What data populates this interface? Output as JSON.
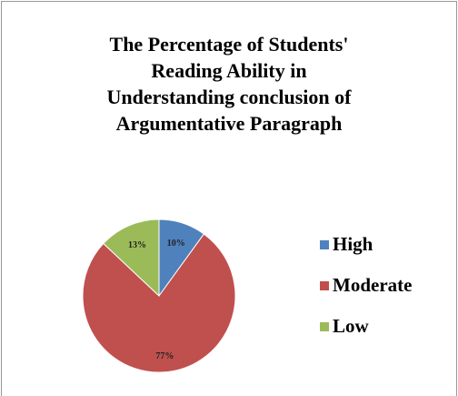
{
  "chart_data": {
    "type": "pie",
    "title": [
      "The Percentage of Students'",
      "Reading Ability in",
      "Understanding conclusion of",
      "Argumentative Paragraph"
    ],
    "categories": [
      "High",
      "Moderate",
      "Low"
    ],
    "values": [
      10,
      77,
      13
    ],
    "value_labels": [
      "10%",
      "77%",
      "13%"
    ],
    "colors": [
      "#4f81bd",
      "#c0504d",
      "#9bbb59"
    ],
    "legend": "right"
  }
}
